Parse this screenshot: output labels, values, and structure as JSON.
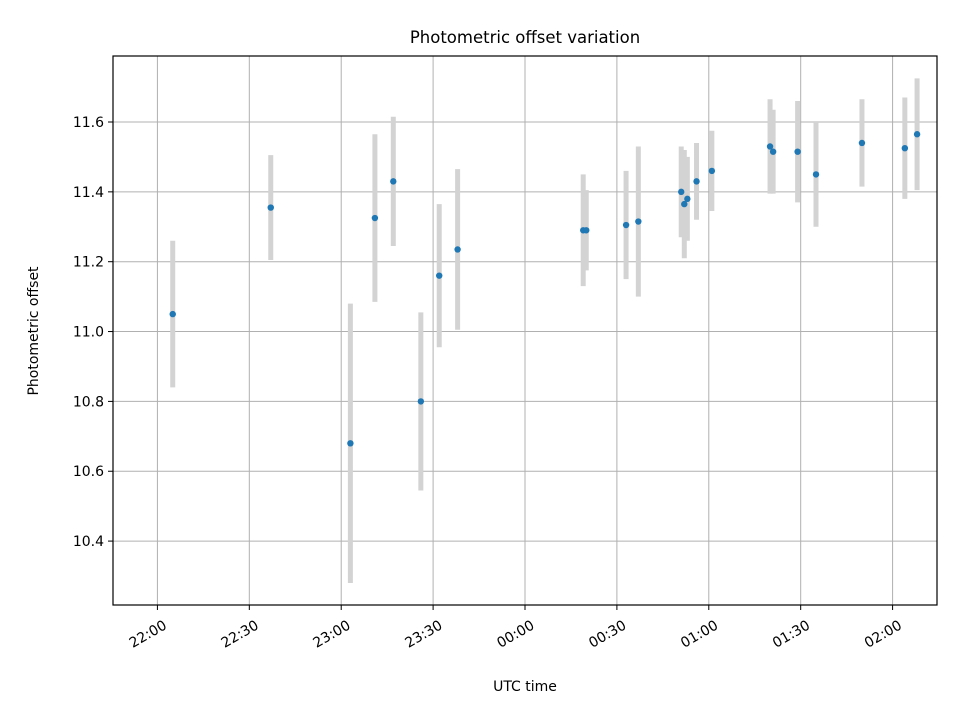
{
  "chart_data": {
    "type": "scatter",
    "title": "Photometric offset variation",
    "xlabel": "UTC time",
    "ylabel": "Photometric offset",
    "x_ticks": [
      "22:00",
      "22:30",
      "23:00",
      "23:30",
      "00:00",
      "00:30",
      "01:00",
      "01:30",
      "02:00"
    ],
    "y_ticks": [
      "10.4",
      "10.6",
      "10.8",
      "11.0",
      "11.2",
      "11.4",
      "11.6"
    ],
    "grid": true,
    "colors": {
      "point": "#1f77b4",
      "errorbar": "#d3d3d3",
      "grid": "#b0b0b0"
    },
    "series": [
      {
        "points": [
          {
            "x": "22:05",
            "y": 11.05,
            "err": 0.21
          },
          {
            "x": "22:37",
            "y": 11.355,
            "err": 0.15
          },
          {
            "x": "23:03",
            "y": 10.68,
            "err": 0.4
          },
          {
            "x": "23:11",
            "y": 11.325,
            "err": 0.24
          },
          {
            "x": "23:17",
            "y": 11.43,
            "err": 0.185
          },
          {
            "x": "23:26",
            "y": 10.8,
            "err": 0.255
          },
          {
            "x": "23:32",
            "y": 11.16,
            "err": 0.205
          },
          {
            "x": "23:38",
            "y": 11.235,
            "err": 0.23
          },
          {
            "x": "00:19",
            "y": 11.29,
            "err": 0.16
          },
          {
            "x": "00:20",
            "y": 11.29,
            "err": 0.115
          },
          {
            "x": "00:33",
            "y": 11.305,
            "err": 0.155
          },
          {
            "x": "00:37",
            "y": 11.315,
            "err": 0.215
          },
          {
            "x": "00:51",
            "y": 11.4,
            "err": 0.13
          },
          {
            "x": "00:52",
            "y": 11.365,
            "err": 0.155
          },
          {
            "x": "00:53",
            "y": 11.38,
            "err": 0.12
          },
          {
            "x": "00:56",
            "y": 11.43,
            "err": 0.11
          },
          {
            "x": "01:01",
            "y": 11.46,
            "err": 0.115
          },
          {
            "x": "01:20",
            "y": 11.53,
            "err": 0.135
          },
          {
            "x": "01:21",
            "y": 11.515,
            "err": 0.12
          },
          {
            "x": "01:29",
            "y": 11.515,
            "err": 0.145
          },
          {
            "x": "01:35",
            "y": 11.45,
            "err": 0.15
          },
          {
            "x": "01:50",
            "y": 11.54,
            "err": 0.125
          },
          {
            "x": "02:04",
            "y": 11.525,
            "err": 0.145
          },
          {
            "x": "02:08",
            "y": 11.565,
            "err": 0.16
          }
        ]
      }
    ]
  }
}
